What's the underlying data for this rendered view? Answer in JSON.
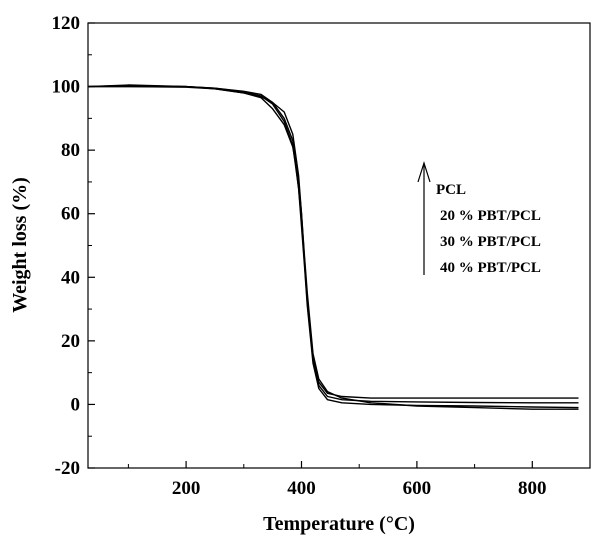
{
  "chart_data": {
    "type": "line",
    "title": "",
    "xlabel": "Temperature (°C)",
    "ylabel": "Weight loss (%)",
    "xlim": [
      30,
      900
    ],
    "ylim": [
      -20,
      120
    ],
    "xticks": [
      200,
      400,
      600,
      800
    ],
    "yticks": [
      -20,
      0,
      20,
      40,
      60,
      80,
      100,
      120
    ],
    "grid": false,
    "annotation": {
      "arrow_direction": "up",
      "labels": [
        "PCL",
        "20 % PBT/PCL",
        "30 % PBT/PCL",
        "40 % PBT/PCL"
      ]
    },
    "series": [
      {
        "name": "PCL",
        "color": "#000000",
        "points": [
          [
            30,
            100
          ],
          [
            100,
            100
          ],
          [
            200,
            100
          ],
          [
            250,
            99.5
          ],
          [
            300,
            98.5
          ],
          [
            330,
            97.5
          ],
          [
            350,
            95
          ],
          [
            370,
            90
          ],
          [
            385,
            83
          ],
          [
            395,
            68
          ],
          [
            400,
            58
          ],
          [
            405,
            45
          ],
          [
            410,
            32
          ],
          [
            420,
            14
          ],
          [
            430,
            7
          ],
          [
            445,
            3.5
          ],
          [
            470,
            2.5
          ],
          [
            520,
            2
          ],
          [
            600,
            2
          ],
          [
            700,
            2
          ],
          [
            800,
            2
          ],
          [
            880,
            2
          ]
        ]
      },
      {
        "name": "20 % PBT/PCL",
        "color": "#000000",
        "points": [
          [
            30,
            100
          ],
          [
            100,
            100
          ],
          [
            200,
            99.8
          ],
          [
            250,
            99.3
          ],
          [
            300,
            98
          ],
          [
            330,
            96.5
          ],
          [
            350,
            93
          ],
          [
            370,
            88
          ],
          [
            385,
            81
          ],
          [
            395,
            70
          ],
          [
            400,
            60
          ],
          [
            405,
            46
          ],
          [
            410,
            33
          ],
          [
            420,
            15
          ],
          [
            430,
            6
          ],
          [
            445,
            2.5
          ],
          [
            470,
            1.5
          ],
          [
            520,
            1
          ],
          [
            600,
            0.8
          ],
          [
            700,
            0.6
          ],
          [
            800,
            0.5
          ],
          [
            880,
            0.5
          ]
        ]
      },
      {
        "name": "30 % PBT/PCL",
        "color": "#000000",
        "points": [
          [
            30,
            100
          ],
          [
            100,
            100.5
          ],
          [
            200,
            100
          ],
          [
            250,
            99.5
          ],
          [
            300,
            98.3
          ],
          [
            330,
            97
          ],
          [
            350,
            94.5
          ],
          [
            370,
            89
          ],
          [
            385,
            81.5
          ],
          [
            395,
            68
          ],
          [
            400,
            56
          ],
          [
            405,
            44
          ],
          [
            410,
            31
          ],
          [
            420,
            13
          ],
          [
            430,
            5
          ],
          [
            445,
            1.5
          ],
          [
            470,
            0.5
          ],
          [
            520,
            0
          ],
          [
            600,
            -0.3
          ],
          [
            700,
            -0.5
          ],
          [
            800,
            -0.8
          ],
          [
            880,
            -1
          ]
        ]
      },
      {
        "name": "40 % PBT/PCL",
        "color": "#000000",
        "points": [
          [
            30,
            100
          ],
          [
            100,
            100.3
          ],
          [
            200,
            100
          ],
          [
            250,
            99.3
          ],
          [
            300,
            98
          ],
          [
            330,
            96.8
          ],
          [
            350,
            95
          ],
          [
            370,
            92
          ],
          [
            385,
            85
          ],
          [
            395,
            72
          ],
          [
            400,
            60
          ],
          [
            405,
            47
          ],
          [
            410,
            35
          ],
          [
            420,
            16
          ],
          [
            430,
            8
          ],
          [
            445,
            4
          ],
          [
            470,
            2
          ],
          [
            520,
            0.5
          ],
          [
            600,
            -0.5
          ],
          [
            700,
            -1
          ],
          [
            800,
            -1.5
          ],
          [
            880,
            -1.5
          ]
        ]
      }
    ]
  }
}
